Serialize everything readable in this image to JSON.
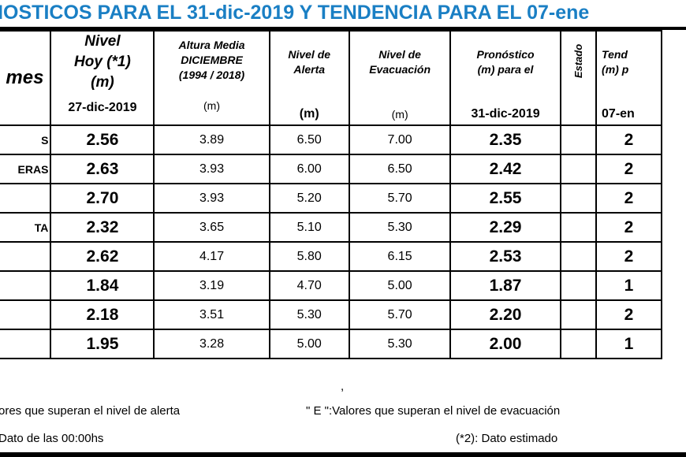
{
  "title": "NOSTICOS PARA EL 31-dic-2019 Y TENDENCIA PARA EL 07-ene",
  "headers": {
    "station": "mes",
    "nivel_hoy": [
      "Nivel",
      "Hoy (*1)",
      "(m)"
    ],
    "nivel_hoy_date": "27-dic-2019",
    "altura_media": [
      "Altura Media",
      "DICIEMBRE",
      "(1994 / 2018)"
    ],
    "altura_media_unit": "(m)",
    "alerta": [
      "Nivel de",
      "Alerta"
    ],
    "alerta_unit": "(m)",
    "evacuacion": [
      "Nivel de",
      "Evacuación"
    ],
    "evacuacion_unit": "(m)",
    "pronostico": [
      "Pronóstico",
      "(m) para el"
    ],
    "pronostico_date": "31-dic-2019",
    "estado": "Estado",
    "tendencia": [
      "Tend",
      "(m) p"
    ],
    "tendencia_date": "07-en"
  },
  "rows": [
    {
      "name": "S",
      "hoy": "2.56",
      "media": "3.89",
      "alerta": "6.50",
      "evac": "7.00",
      "pron": "2.35",
      "estado": "",
      "tend": "2"
    },
    {
      "name": "ERAS",
      "hoy": "2.63",
      "media": "3.93",
      "alerta": "6.00",
      "evac": "6.50",
      "pron": "2.42",
      "estado": "",
      "tend": "2"
    },
    {
      "name": "",
      "hoy": "2.70",
      "media": "3.93",
      "alerta": "5.20",
      "evac": "5.70",
      "pron": "2.55",
      "estado": "",
      "tend": "2"
    },
    {
      "name": "TA",
      "hoy": "2.32",
      "media": "3.65",
      "alerta": "5.10",
      "evac": "5.30",
      "pron": "2.29",
      "estado": "",
      "tend": "2"
    },
    {
      "name": "",
      "hoy": "2.62",
      "media": "4.17",
      "alerta": "5.80",
      "evac": "6.15",
      "pron": "2.53",
      "estado": "",
      "tend": "2"
    },
    {
      "name": "",
      "hoy": "1.84",
      "media": "3.19",
      "alerta": "4.70",
      "evac": "5.00",
      "pron": "1.87",
      "estado": "",
      "tend": "1"
    },
    {
      "name": "",
      "hoy": "2.18",
      "media": "3.51",
      "alerta": "5.30",
      "evac": "5.70",
      "pron": "2.20",
      "estado": "",
      "tend": "2"
    },
    {
      "name": "",
      "hoy": "1.95",
      "media": "3.28",
      "alerta": "5.00",
      "evac": "5.30",
      "pron": "2.00",
      "estado": "",
      "tend": "1"
    }
  ],
  "footer": {
    "comma": ",",
    "note_alerta": "ores que superan el nivel de alerta",
    "note_evacuacion": "\" E \":Valores que superan el nivel de evacuación",
    "note_dato": "Dato de las 00:00hs",
    "note_estimado": "(*2): Dato estimado"
  }
}
